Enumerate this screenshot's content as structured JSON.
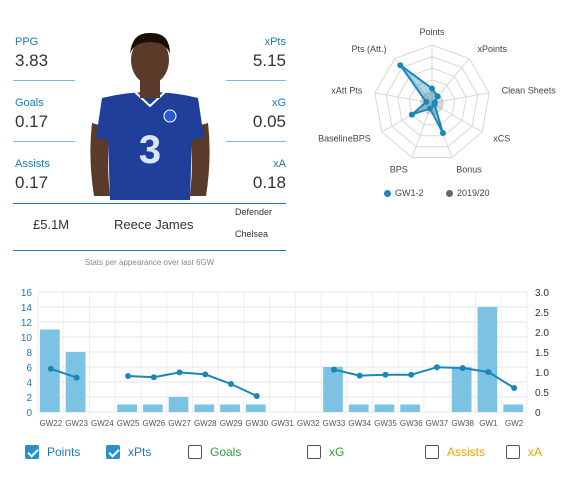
{
  "stats": {
    "ppg_label": "PPG",
    "ppg": "3.83",
    "xpts_label": "xPts",
    "xpts": "5.15",
    "goals_label": "Goals",
    "goals": "0.17",
    "xg_label": "xG",
    "xg": "0.05",
    "assists_label": "Assists",
    "assists": "0.17",
    "xa_label": "xA",
    "xa": "0.18"
  },
  "player": {
    "price": "£5.1M",
    "name": "Reece James",
    "position": "Defender",
    "team": "Chelsea",
    "note": "Stats per appearance over last 6GW",
    "kit_colors": {
      "shirt": "#1f3f9a",
      "skin": "#5a3a28"
    }
  },
  "radar": {
    "axes": [
      "Points",
      "xPoints",
      "Clean Sheets",
      "xCS",
      "Bonus",
      "BPS",
      "BaselineBPS",
      "xAtt Pts",
      "Pts (Att.)"
    ],
    "series": [
      {
        "name": "GW1-2",
        "color": "#1b87b8",
        "values": [
          0.25,
          0.15,
          0.05,
          0.05,
          0.55,
          0.1,
          0.4,
          0.1,
          0.85
        ]
      },
      {
        "name": "2019/20",
        "color": "#666666",
        "values": [
          0.2,
          0.2,
          0.2,
          0.2,
          0.2,
          0.2,
          0.2,
          0.2,
          0.2
        ]
      }
    ]
  },
  "chart_data": {
    "type": "bar",
    "categories": [
      "GW22",
      "GW23",
      "GW24",
      "GW25",
      "GW26",
      "GW27",
      "GW28",
      "GW29",
      "GW30",
      "GW31",
      "GW32",
      "GW33",
      "GW34",
      "GW35",
      "GW36",
      "GW37",
      "GW38",
      "GW1",
      "GW2"
    ],
    "series": [
      {
        "name": "Points",
        "axis": "left",
        "color": "#7cc3e3",
        "values": [
          11,
          8,
          null,
          1,
          1,
          2,
          1,
          1,
          1,
          null,
          null,
          6,
          1,
          1,
          1,
          null,
          6,
          14,
          1
        ]
      },
      {
        "name": "xPts",
        "axis": "right",
        "color": "#1b87b8",
        "values": [
          1.08,
          0.86,
          null,
          0.9,
          0.87,
          0.99,
          0.94,
          0.7,
          0.4,
          null,
          null,
          1.06,
          0.91,
          0.93,
          0.93,
          1.12,
          1.1,
          1.0,
          0.6
        ]
      }
    ],
    "ylim_left": [
      0,
      16
    ],
    "ylim_right": [
      0,
      3.0
    ],
    "yticks_left": [
      "0",
      "2",
      "4",
      "6",
      "8",
      "10",
      "12",
      "14",
      "16"
    ],
    "yticks_right": [
      "0",
      "0.5",
      "1.0",
      "1.5",
      "2.0",
      "2.5",
      "3.0"
    ],
    "grid": true
  },
  "toggles": [
    {
      "label": "Points",
      "checked": true,
      "color": "#1d78b8"
    },
    {
      "label": "xPts",
      "checked": true,
      "color": "#1d78b8"
    },
    {
      "label": "Goals",
      "checked": false,
      "color": "#2e9e45"
    },
    {
      "label": "xG",
      "checked": false,
      "color": "#2e9e45"
    },
    {
      "label": "Assists",
      "checked": false,
      "color": "#e9a400"
    },
    {
      "label": "xA",
      "checked": false,
      "color": "#e9a400"
    }
  ]
}
